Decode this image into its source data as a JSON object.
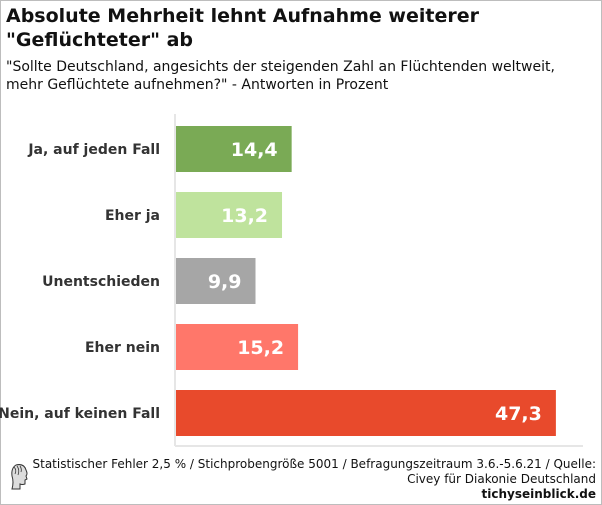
{
  "chart_data": {
    "type": "bar",
    "orientation": "horizontal",
    "title": "Absolute Mehrheit lehnt Aufnahme weiterer \"Geflüchteter\" ab",
    "subtitle": "\"Sollte Deutschland, angesichts der steigenden Zahl an Flüchtenden weltweit, mehr Geflüchtete aufnehmen?\" - Antworten in Prozent",
    "categories": [
      "Ja, auf jeden Fall",
      "Eher ja",
      "Unentschieden",
      "Eher nein",
      "Nein, auf keinen Fall"
    ],
    "values": [
      14.4,
      13.2,
      9.9,
      15.2,
      47.3
    ],
    "value_labels": [
      "14,4",
      "13,2",
      "9,9",
      "15,2",
      "47,3"
    ],
    "colors": [
      "#7aaa55",
      "#bfe39d",
      "#a6a6a6",
      "#ff776a",
      "#e84a2c"
    ],
    "xlim": [
      0,
      50.8
    ],
    "grid": false
  },
  "footer": {
    "line1": "Statistischer Fehler 2,5 % / Stichprobengröße 5001 / Befragungszeitraum 3.6.-5.6.21 / Quelle:",
    "line2": "Civey für Diakonie Deutschland",
    "site": "tichyseinblick.de"
  },
  "logo": "tichyseinblick.de"
}
